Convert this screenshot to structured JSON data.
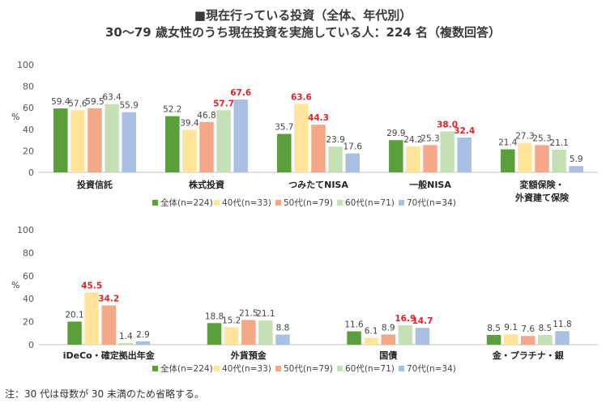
{
  "title_line1": "■現在行っている投資（全体、年代別）",
  "title_line2": "30～79 歳女性のうち現在投資を実施している人：224 名（複数回答）",
  "note": "注：30 代は母数が 30 未満のため省略する。",
  "colors": [
    "#5b9e3c",
    "#ffe49a",
    "#f4a888",
    "#c5e0b4",
    "#a9bfe3"
  ],
  "highlight_color": "#e0242a",
  "chart_data": [
    {
      "type": "bar",
      "ylabel": "%",
      "ylim": [
        0,
        100
      ],
      "yticks": [
        0,
        20,
        40,
        60,
        80,
        100
      ],
      "categories": [
        [
          "投資信託"
        ],
        [
          "株式投資"
        ],
        [
          "つみたてNISA"
        ],
        [
          "一般NISA"
        ],
        [
          "変額保険・",
          "外資建て保険"
        ]
      ],
      "series": [
        {
          "name": "全体(n=224)",
          "values": [
            59.4,
            52.2,
            35.7,
            29.9,
            21.4
          ]
        },
        {
          "name": "40代(n=33)",
          "values": [
            57.6,
            39.4,
            63.6,
            24.2,
            27.3
          ]
        },
        {
          "name": "50代(n=79)",
          "values": [
            59.5,
            46.8,
            44.3,
            25.3,
            25.3
          ]
        },
        {
          "name": "60代(n=71)",
          "values": [
            63.4,
            57.7,
            23.9,
            38.0,
            21.1
          ]
        },
        {
          "name": "70代(n=34)",
          "values": [
            55.9,
            67.6,
            17.6,
            32.4,
            5.9
          ]
        }
      ],
      "highlights": [
        [
          1,
          3
        ],
        [
          1,
          4
        ],
        [
          2,
          1
        ],
        [
          2,
          2
        ],
        [
          3,
          3
        ],
        [
          3,
          4
        ]
      ],
      "legend": "bottom"
    },
    {
      "type": "bar",
      "ylabel": "%",
      "ylim": [
        0,
        100
      ],
      "yticks": [
        0,
        20,
        40,
        60,
        80,
        100
      ],
      "categories": [
        [
          "iDeCo・確定拠出年金"
        ],
        [
          "外貨預金"
        ],
        [
          "国債"
        ],
        [
          "金・プラチナ・銀"
        ]
      ],
      "series": [
        {
          "name": "全体(n=224)",
          "values": [
            20.1,
            18.8,
            11.6,
            8.5
          ]
        },
        {
          "name": "40代(n=33)",
          "values": [
            45.5,
            15.2,
            6.1,
            9.1
          ]
        },
        {
          "name": "50代(n=79)",
          "values": [
            34.2,
            21.5,
            8.9,
            7.6
          ]
        },
        {
          "name": "60代(n=71)",
          "values": [
            1.4,
            21.1,
            16.9,
            8.5
          ]
        },
        {
          "name": "70代(n=34)",
          "values": [
            2.9,
            8.8,
            14.7,
            11.8
          ]
        }
      ],
      "highlights": [
        [
          0,
          1
        ],
        [
          0,
          2
        ],
        [
          2,
          3
        ],
        [
          2,
          4
        ]
      ],
      "legend": "bottom"
    }
  ]
}
